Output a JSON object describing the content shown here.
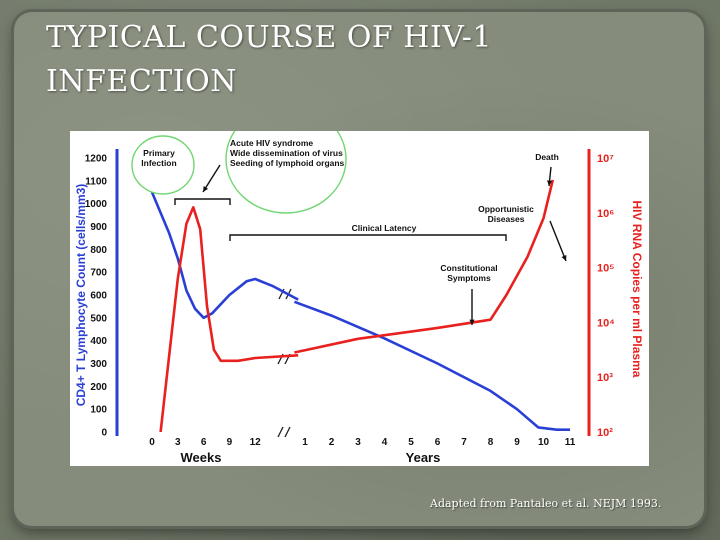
{
  "slide": {
    "title_line1": "TYPICAL COURSE OF HIV-1",
    "title_line2": "INFECTION",
    "caption": "Adapted from Pantaleo et al. NEJM 1993."
  },
  "chart_data": {
    "type": "line",
    "ylabel_left": "CD4+ T Lymphocyte Count (cells/mm3)",
    "ylabel_right": "HIV RNA Copies per ml Plasma",
    "left_axis": {
      "range": [
        0,
        1200
      ],
      "ticks": [
        "0",
        "100",
        "200",
        "300",
        "400",
        "500",
        "600",
        "700",
        "800",
        "900",
        "1000",
        "1100",
        "1200"
      ]
    },
    "right_axis": {
      "range_log10": [
        2,
        7
      ],
      "ticks": [
        "10²",
        "10³",
        "10⁴",
        "10⁵",
        "10⁶",
        "10⁷"
      ]
    },
    "x_axis": {
      "weeks_label": "Weeks",
      "years_label": "Years",
      "weeks_ticks": [
        "0",
        "3",
        "6",
        "9",
        "12"
      ],
      "years_ticks": [
        "1",
        "2",
        "3",
        "4",
        "5",
        "6",
        "7",
        "8",
        "9",
        "10",
        "11"
      ]
    },
    "colors": {
      "cd4": "#2a3fd6",
      "rna": "#e8211e",
      "annotation_circle": "#62d262"
    },
    "series": [
      {
        "key": "cd4",
        "points": [
          {
            "period": "weeks",
            "x": 0,
            "y": 1050
          },
          {
            "period": "weeks",
            "x": 1,
            "y": 960
          },
          {
            "period": "weeks",
            "x": 2,
            "y": 870
          },
          {
            "period": "weeks",
            "x": 3,
            "y": 760
          },
          {
            "period": "weeks",
            "x": 4,
            "y": 620
          },
          {
            "period": "weeks",
            "x": 5,
            "y": 540
          },
          {
            "period": "weeks",
            "x": 6,
            "y": 500
          },
          {
            "period": "weeks",
            "x": 7,
            "y": 520
          },
          {
            "period": "weeks",
            "x": 9,
            "y": 600
          },
          {
            "period": "weeks",
            "x": 11,
            "y": 660
          },
          {
            "period": "weeks",
            "x": 12,
            "y": 670
          },
          {
            "period": "weeks",
            "x": 14,
            "y": 640
          },
          {
            "period": "weeks",
            "x": 17,
            "y": 580
          },
          {
            "period": "years",
            "x": 0.6,
            "y": 570
          },
          {
            "period": "years",
            "x": 2,
            "y": 510
          },
          {
            "period": "years",
            "x": 4,
            "y": 410
          },
          {
            "period": "years",
            "x": 6,
            "y": 300
          },
          {
            "period": "years",
            "x": 8,
            "y": 180
          },
          {
            "period": "years",
            "x": 9,
            "y": 100
          },
          {
            "period": "years",
            "x": 9.8,
            "y": 20
          },
          {
            "period": "years",
            "x": 10.5,
            "y": 10
          },
          {
            "period": "years",
            "x": 11,
            "y": 10
          }
        ]
      },
      {
        "key": "rna",
        "points": [
          {
            "period": "weeks",
            "x": 1,
            "y": 2
          },
          {
            "period": "weeks",
            "x": 2,
            "y": 3.4
          },
          {
            "period": "weeks",
            "x": 3,
            "y": 4.8
          },
          {
            "period": "weeks",
            "x": 4,
            "y": 5.8
          },
          {
            "period": "weeks",
            "x": 4.8,
            "y": 6.1
          },
          {
            "period": "weeks",
            "x": 5.6,
            "y": 5.7
          },
          {
            "period": "weeks",
            "x": 6.4,
            "y": 4.3
          },
          {
            "period": "weeks",
            "x": 7.2,
            "y": 3.5
          },
          {
            "period": "weeks",
            "x": 8,
            "y": 3.3
          },
          {
            "period": "weeks",
            "x": 10,
            "y": 3.3
          },
          {
            "period": "weeks",
            "x": 12,
            "y": 3.35
          },
          {
            "period": "weeks",
            "x": 17,
            "y": 3.4
          },
          {
            "period": "years",
            "x": 0.6,
            "y": 3.45
          },
          {
            "period": "years",
            "x": 3,
            "y": 3.7
          },
          {
            "period": "years",
            "x": 6,
            "y": 3.9
          },
          {
            "period": "years",
            "x": 8,
            "y": 4.05
          },
          {
            "period": "years",
            "x": 8.6,
            "y": 4.5
          },
          {
            "period": "years",
            "x": 9.4,
            "y": 5.2
          },
          {
            "period": "years",
            "x": 10,
            "y": 5.9
          },
          {
            "period": "years",
            "x": 10.35,
            "y": 6.6
          }
        ]
      }
    ],
    "annotations": {
      "primary": "Primary\nInfection",
      "acute": "Acute HIV syndrome\nWide dissemination of virus\nSeeding of lymphoid organs",
      "latency": "Clinical Latency",
      "death": "Death",
      "opportunistic": "Opportunistic\nDiseases",
      "constitutional": "Constitutional\nSymptoms"
    },
    "grid": false,
    "legend": "none"
  }
}
